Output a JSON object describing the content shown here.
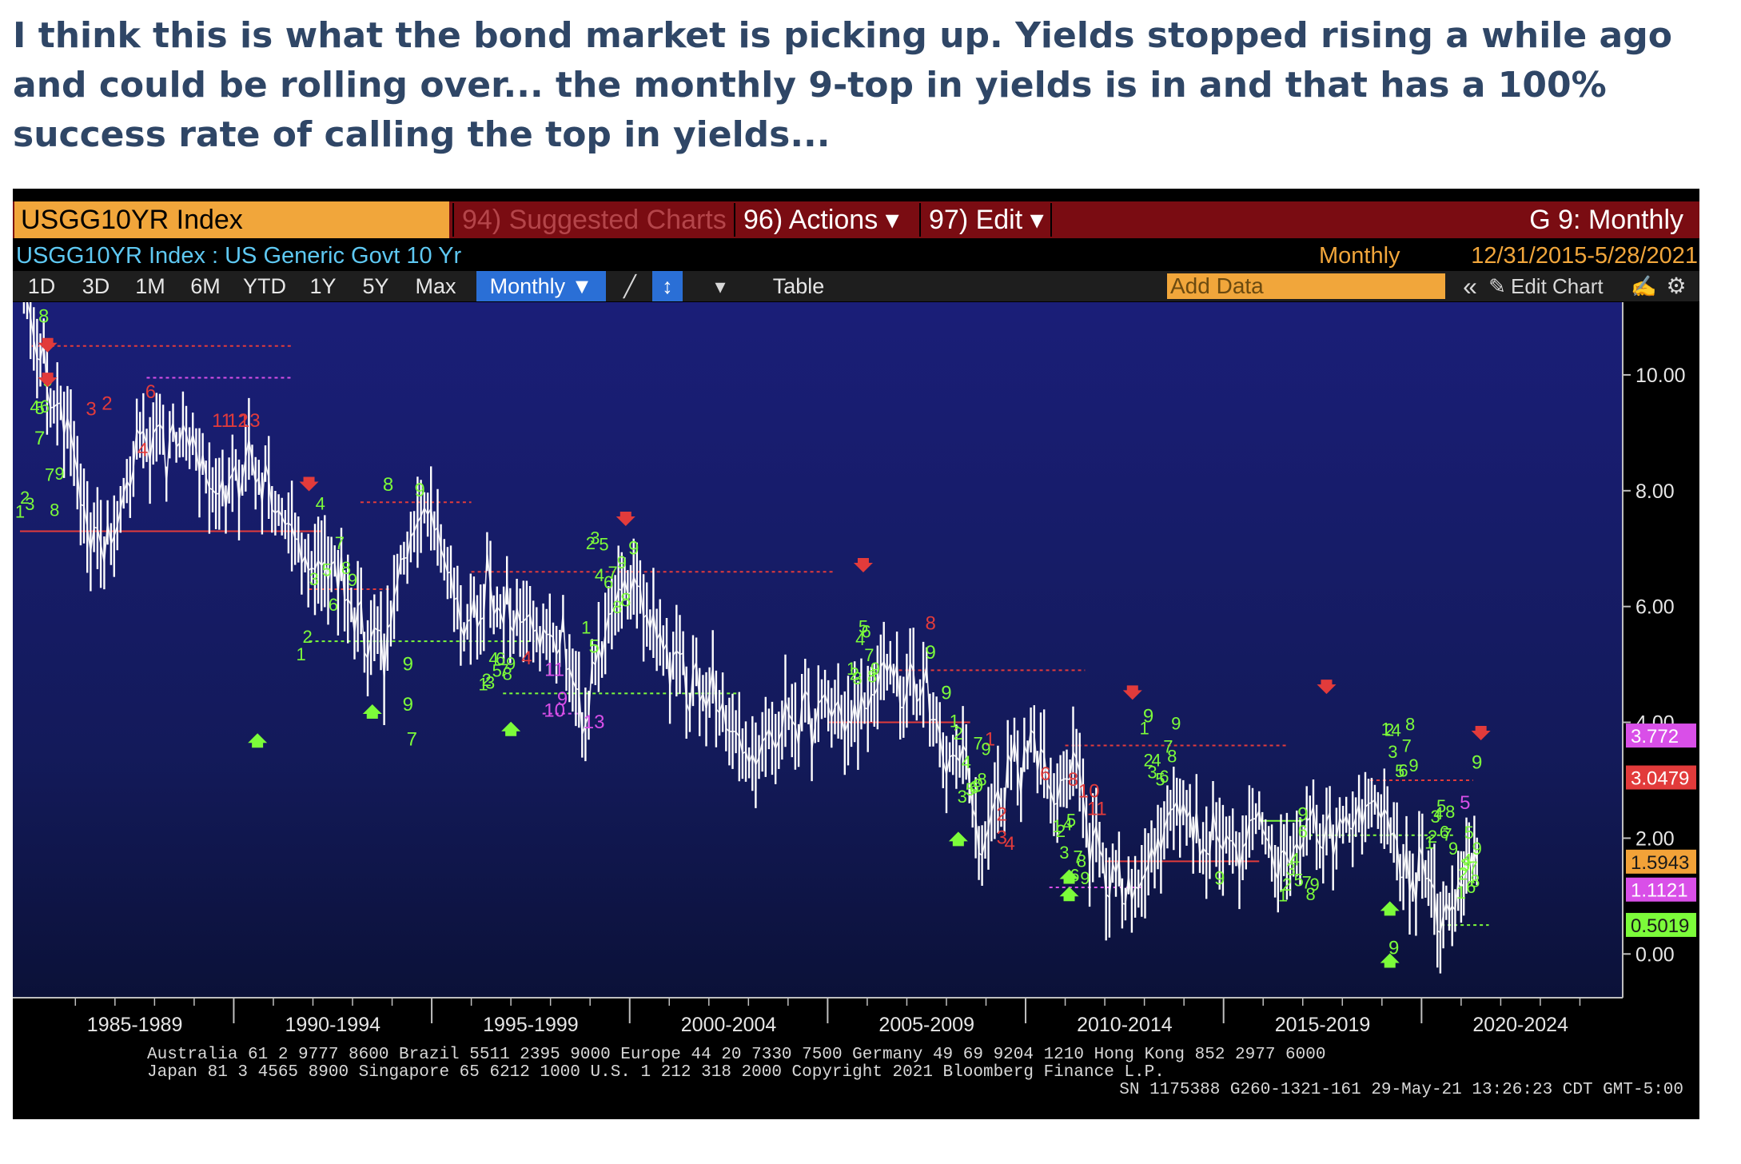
{
  "post": {
    "text": "I think this is what the bond market is picking up. Yields stopped rising a while ago and could be rolling over... the monthly 9-top in yields is in and that has a 100% success rate of calling the top in yields..."
  },
  "terminal": {
    "ticker": "USGG10YR Index",
    "menu": {
      "suggested": "94) Suggested Charts",
      "actions": "96) Actions ▾",
      "edit": "97) Edit ▾"
    },
    "right_title": "G 9: Monthly",
    "security_name": "USGG10YR Index : US Generic Govt 10 Yr",
    "frequency": "Monthly",
    "date_range": "12/31/2015-5/28/2021",
    "ranges": [
      "1D",
      "3D",
      "1M",
      "6M",
      "YTD",
      "1Y",
      "5Y",
      "Max"
    ],
    "monthly_label": "Monthly ▼",
    "table_label": "Table",
    "add_data_placeholder": "Add Data",
    "collapse_label": "«",
    "edit_chart_label": "Edit Chart",
    "footer": [
      "Australia 61 2 9777 8600 Brazil 5511 2395 9000 Europe 44 20 7330 7500 Germany 49 69 9204 1210 Hong Kong 852 2977 6000",
      "Japan 81 3 4565 8900        Singapore 65 6212 1000        U.S. 1 212 318 2000          Copyright 2021 Bloomberg Finance L.P.",
      "SN 1175388 G260-1321-161 29-May-21 13:26:23 CDT  GMT-5:00"
    ]
  },
  "colors": {
    "headline": "#2f4666",
    "price": "#ffffff",
    "setup_count": "#7cfc3a",
    "countdown": "#e23b3b",
    "magenta_count": "#d94fe8",
    "tag_red": "#e23b3b",
    "tag_orange": "#f2a238",
    "tag_magenta": "#d94fe8",
    "tag_green": "#7cfc3a"
  },
  "chart_data": {
    "type": "line",
    "series_name": "USGG10YR Index",
    "x_tick_labels": [
      "1985-1989",
      "1990-1994",
      "1995-1999",
      "2000-2004",
      "2005-2009",
      "2010-2014",
      "2015-2019",
      "2020-2024"
    ],
    "y_ticks": [
      "10.00",
      "8.00",
      "6.00",
      "4.00",
      "2.00",
      "0.00"
    ],
    "ylim": [
      -0.7,
      11.2
    ],
    "xlim": [
      1984.5,
      2025.0
    ],
    "x": [
      1984.7,
      1985.2,
      1985.8,
      1986.3,
      1986.9,
      1987.3,
      1987.8,
      1988.3,
      1988.8,
      1989.3,
      1989.8,
      1990.3,
      1990.8,
      1991.3,
      1991.8,
      1992.3,
      1992.8,
      1993.3,
      1993.8,
      1994.3,
      1994.9,
      1995.4,
      1995.9,
      1996.4,
      1996.9,
      1997.4,
      1997.9,
      1998.4,
      1998.8,
      1999.3,
      1999.8,
      2000.1,
      2000.6,
      2001.1,
      2001.6,
      2002.1,
      2002.6,
      2003.1,
      2003.6,
      2004.1,
      2004.6,
      2005.1,
      2005.6,
      2006.1,
      2006.5,
      2007.0,
      2007.5,
      2008.0,
      2008.5,
      2008.9,
      2009.3,
      2009.8,
      2010.3,
      2010.8,
      2011.2,
      2011.7,
      2012.2,
      2012.6,
      2013.1,
      2013.5,
      2013.9,
      2014.4,
      2014.9,
      2015.4,
      2015.9,
      2016.3,
      2016.6,
      2017.1,
      2017.6,
      2018.1,
      2018.5,
      2018.9,
      2019.3,
      2019.7,
      2020.1,
      2020.4,
      2020.7,
      2021.0,
      2021.2,
      2021.4
    ],
    "values": [
      11.5,
      10.4,
      9.6,
      7.8,
      7.4,
      8.6,
      9.2,
      8.8,
      9.1,
      8.3,
      7.9,
      8.7,
      8.5,
      8.0,
      7.3,
      7.3,
      6.9,
      5.8,
      5.4,
      6.9,
      7.8,
      6.6,
      5.6,
      6.7,
      6.4,
      6.3,
      5.9,
      5.6,
      4.6,
      5.5,
      6.3,
      6.4,
      5.7,
      5.1,
      4.9,
      5.0,
      4.3,
      4.0,
      4.3,
      4.4,
      4.3,
      4.2,
      4.0,
      4.6,
      5.1,
      4.8,
      5.0,
      3.8,
      4.0,
      2.2,
      3.2,
      3.5,
      3.8,
      2.6,
      3.4,
      2.1,
      1.6,
      1.6,
      2.0,
      2.7,
      3.0,
      2.5,
      2.2,
      2.0,
      2.3,
      1.5,
      1.6,
      2.4,
      2.3,
      2.8,
      2.9,
      3.2,
      2.5,
      1.6,
      1.6,
      0.6,
      0.7,
      1.1,
      1.6,
      1.6
    ],
    "last_value_tags": [
      "3.772",
      "3.0479",
      "1.5943",
      "1.1121",
      "0.5019"
    ],
    "last_value_tag_levels": [
      3.772,
      3.0479,
      1.5943,
      1.1121,
      0.5019
    ],
    "marker_digits": [
      "8",
      "9",
      "7",
      "3",
      "2",
      "4",
      "6",
      "11",
      "12",
      "13",
      "9",
      "7",
      "8",
      "9",
      "4",
      "9",
      "5",
      "9",
      "8",
      "9",
      "11",
      "13",
      "10",
      "9",
      "8",
      "9",
      "9",
      "9",
      "9",
      "5",
      "6",
      "8",
      "10",
      "11",
      "1",
      "2",
      "3",
      "4",
      "9",
      "9",
      "9"
    ],
    "grid": false,
    "legend": "none"
  }
}
